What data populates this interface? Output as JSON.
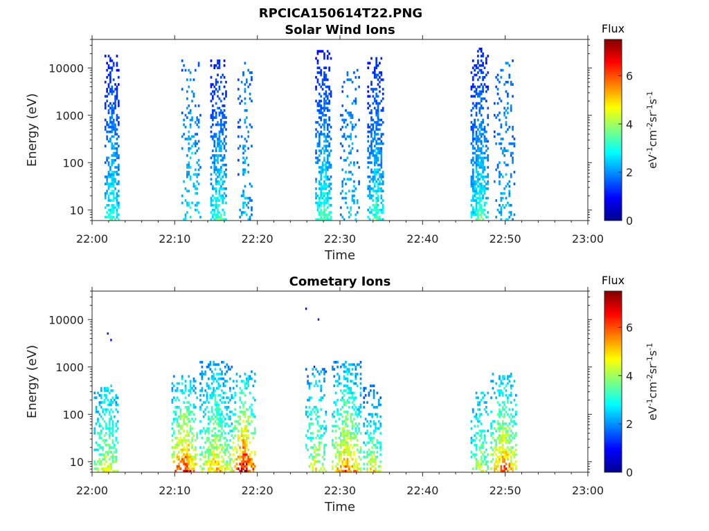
{
  "figure_title": "RPCICA150614T22.PNG",
  "chart_data": [
    {
      "type": "heatmap",
      "title": "Solar Wind Ions",
      "xlabel": "Time",
      "ylabel": "Energy (eV)",
      "x_ticks": [
        "22:00",
        "22:10",
        "22:20",
        "22:30",
        "22:40",
        "22:50",
        "23:00"
      ],
      "xlim_minutes": [
        0,
        60
      ],
      "y_ticks": [
        "10",
        "100",
        "1000",
        "10000"
      ],
      "y_tick_values": [
        10,
        100,
        1000,
        10000
      ],
      "ylim": [
        6,
        40000
      ],
      "y_scale": "log",
      "colorbar": {
        "label": "Flux",
        "units": "eV-1cm-2sr-1s-1",
        "ticks": [
          "0",
          "2",
          "4",
          "6"
        ],
        "tick_values": [
          0,
          2,
          4,
          6
        ],
        "range": [
          0,
          7.5
        ],
        "colormap": "jet"
      },
      "bursts": [
        {
          "t": [
            1.5,
            3.2
          ],
          "e_max": 17000,
          "flux_low": 3.4,
          "flux_high": 1.2,
          "density": 0.7
        },
        {
          "t": [
            10.8,
            13.0
          ],
          "e_max": 14000,
          "flux_low": 3.0,
          "flux_high": 1.8,
          "density": 0.25
        },
        {
          "t": [
            14.3,
            16.2
          ],
          "e_max": 15000,
          "flux_low": 3.4,
          "flux_high": 1.2,
          "density": 0.72
        },
        {
          "t": [
            17.6,
            19.3
          ],
          "e_max": 12000,
          "flux_low": 2.4,
          "flux_high": 1.8,
          "density": 0.25
        },
        {
          "t": [
            27.0,
            28.9
          ],
          "e_max": 22000,
          "flux_low": 3.6,
          "flux_high": 1.2,
          "density": 0.72
        },
        {
          "t": [
            30.0,
            32.3
          ],
          "e_max": 10000,
          "flux_low": 2.6,
          "flux_high": 1.8,
          "density": 0.25
        },
        {
          "t": [
            33.3,
            35.3
          ],
          "e_max": 16000,
          "flux_low": 3.4,
          "flux_high": 1.2,
          "density": 0.72
        },
        {
          "t": [
            45.8,
            47.9
          ],
          "e_max": 24000,
          "flux_low": 3.5,
          "flux_high": 1.2,
          "density": 0.7
        },
        {
          "t": [
            48.6,
            51.2
          ],
          "e_max": 15000,
          "flux_low": 2.4,
          "flux_high": 1.8,
          "density": 0.25
        }
      ]
    },
    {
      "type": "heatmap",
      "title": "Cometary Ions",
      "xlabel": "Time",
      "ylabel": "Energy (eV)",
      "x_ticks": [
        "22:00",
        "22:10",
        "22:20",
        "22:30",
        "22:40",
        "22:50",
        "23:00"
      ],
      "xlim_minutes": [
        0,
        60
      ],
      "y_ticks": [
        "10",
        "100",
        "1000",
        "10000"
      ],
      "y_tick_values": [
        10,
        100,
        1000,
        10000
      ],
      "ylim": [
        6,
        40000
      ],
      "y_scale": "log",
      "colorbar": {
        "label": "Flux",
        "units": "eV-1cm-2sr-1s-1",
        "ticks": [
          "0",
          "2",
          "4",
          "6"
        ],
        "tick_values": [
          0,
          2,
          4,
          6
        ],
        "range": [
          0,
          7.5
        ],
        "colormap": "jet"
      },
      "bursts": [
        {
          "t": [
            0.2,
            3.2
          ],
          "e_max": 400,
          "flux_low": 4.6,
          "flux_high": 2.4,
          "density": 0.6
        },
        {
          "t": [
            9.6,
            12.6
          ],
          "e_max": 600,
          "flux_low": 6.6,
          "flux_high": 2.4,
          "density": 0.62
        },
        {
          "t": [
            13.0,
            16.8
          ],
          "e_max": 1200,
          "flux_low": 5.2,
          "flux_high": 2.2,
          "density": 0.62
        },
        {
          "t": [
            17.0,
            19.6
          ],
          "e_max": 800,
          "flux_low": 7.2,
          "flux_high": 2.4,
          "density": 0.62
        },
        {
          "t": [
            25.8,
            28.2
          ],
          "e_max": 900,
          "flux_low": 4.8,
          "flux_high": 2.2,
          "density": 0.45
        },
        {
          "t": [
            29.0,
            32.5
          ],
          "e_max": 1300,
          "flux_low": 5.8,
          "flux_high": 2.2,
          "density": 0.62
        },
        {
          "t": [
            32.8,
            35.0
          ],
          "e_max": 400,
          "flux_low": 5.0,
          "flux_high": 1.8,
          "density": 0.55
        },
        {
          "t": [
            45.8,
            48.0
          ],
          "e_max": 300,
          "flux_low": 4.4,
          "flux_high": 2.4,
          "density": 0.5
        },
        {
          "t": [
            48.2,
            51.3
          ],
          "e_max": 700,
          "flux_low": 6.0,
          "flux_high": 2.4,
          "density": 0.62
        }
      ],
      "isolated_points": [
        {
          "t": 1.8,
          "e": 4800,
          "flux": 1.2
        },
        {
          "t": 2.2,
          "e": 3500,
          "flux": 1.1
        },
        {
          "t": 25.8,
          "e": 16000,
          "flux": 1.0
        },
        {
          "t": 27.3,
          "e": 9500,
          "flux": 1.2
        },
        {
          "t": 26.8,
          "e": 950,
          "flux": 1.2
        }
      ]
    }
  ]
}
